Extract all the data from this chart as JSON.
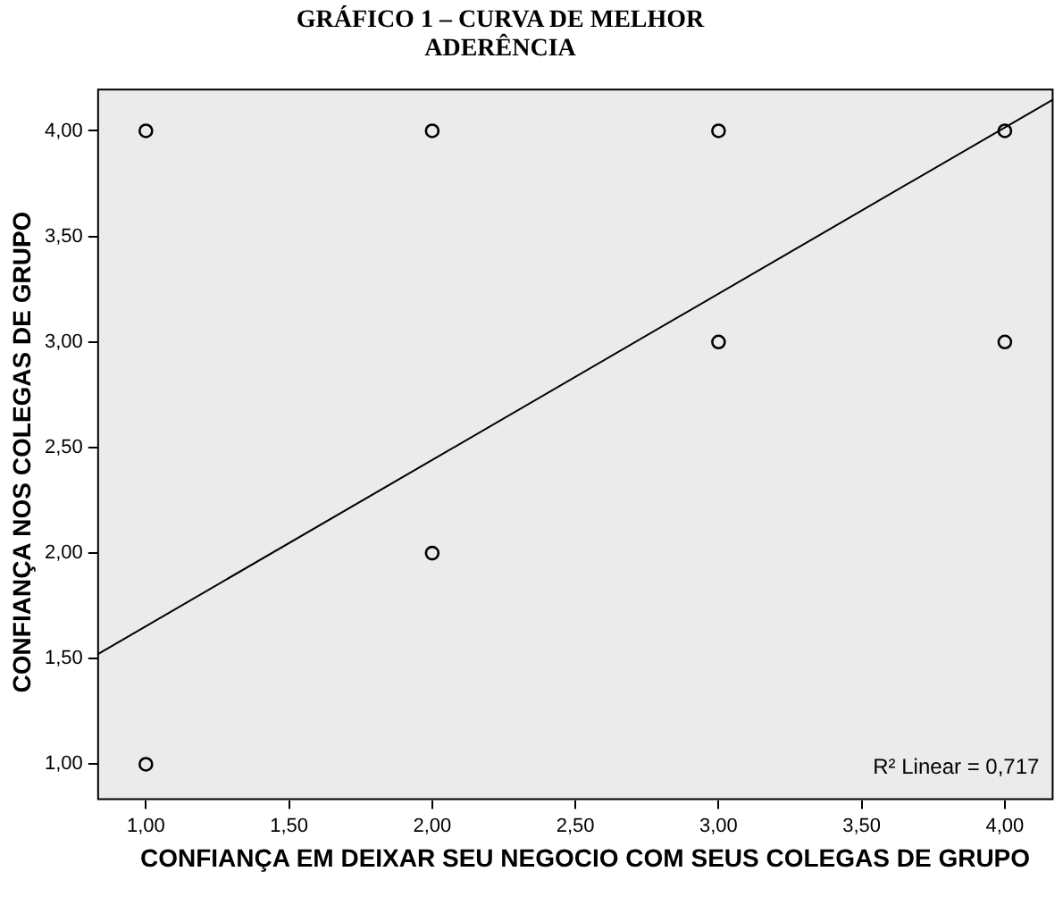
{
  "chart_data": {
    "type": "scatter",
    "title": "GRÁFICO 1 – CURVA DE MELHOR ADERÊNCIA",
    "xlabel": "CONFIANÇA EM DEIXAR SEU NEGOCIO COM SEUS COLEGAS DE GRUPO",
    "ylabel": "CONFIANÇA NOS COLEGAS DE GRUPO",
    "annotations": [
      "R² Linear = 0,717"
    ],
    "xlim": [
      0.83,
      4.17
    ],
    "ylim": [
      0.83,
      4.2
    ],
    "xticks": [
      {
        "value": 1,
        "label": "1,00"
      },
      {
        "value": 1.5,
        "label": "1,50"
      },
      {
        "value": 2,
        "label": "2,00"
      },
      {
        "value": 2.5,
        "label": "2,50"
      },
      {
        "value": 3,
        "label": "3,00"
      },
      {
        "value": 3.5,
        "label": "3,50"
      },
      {
        "value": 4,
        "label": "4,00"
      }
    ],
    "yticks": [
      {
        "value": 1,
        "label": "1,00"
      },
      {
        "value": 1.5,
        "label": "1,50"
      },
      {
        "value": 2,
        "label": "2,00"
      },
      {
        "value": 2.5,
        "label": "2,50"
      },
      {
        "value": 3,
        "label": "3,00"
      },
      {
        "value": 3.5,
        "label": "3,50"
      },
      {
        "value": 4,
        "label": "4,00"
      }
    ],
    "grid": false,
    "legend": false,
    "series": [
      {
        "color": "#000000",
        "marker": "circle",
        "x": [
          1,
          2,
          3,
          4,
          3,
          4,
          2,
          1
        ],
        "values": [
          4,
          4,
          4,
          4,
          3,
          3,
          2,
          1
        ]
      },
      {
        "type": "line",
        "color": "#000000",
        "marker": "none",
        "x": [
          0.83,
          4.17
        ],
        "values": [
          1.52,
          4.15
        ]
      }
    ]
  }
}
